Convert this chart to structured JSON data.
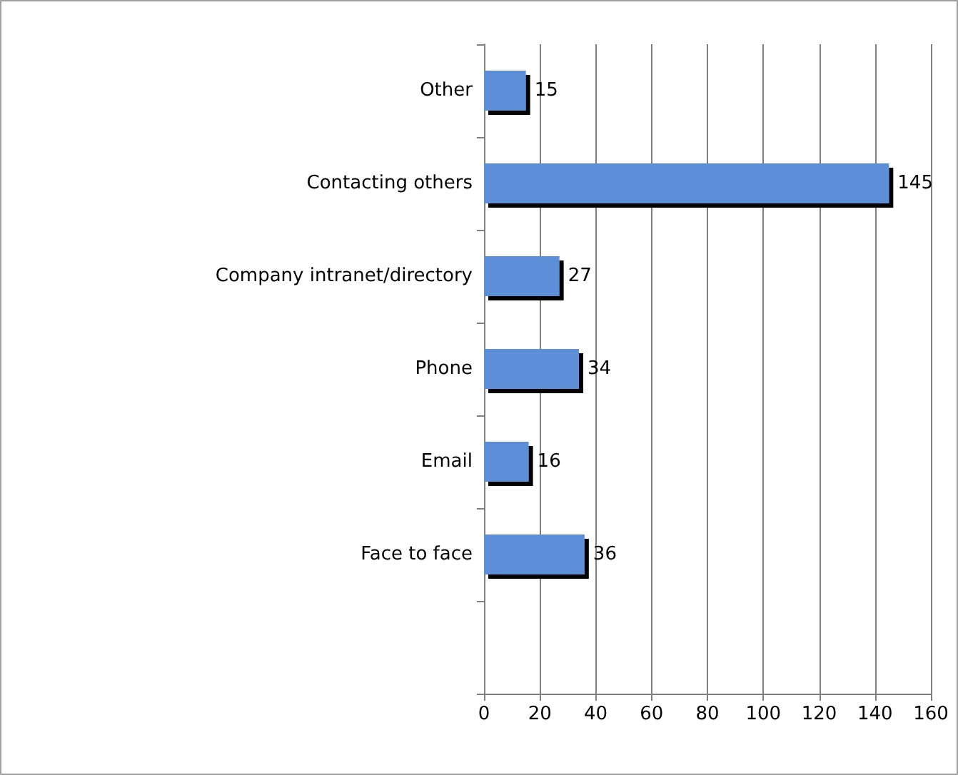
{
  "chart_data": {
    "type": "bar",
    "orientation": "horizontal",
    "categories": [
      "Other",
      "Contacting others",
      "Company intranet/directory",
      "Phone",
      "Email",
      "Face to face",
      null
    ],
    "values": [
      15,
      145,
      27,
      34,
      16,
      36,
      null
    ],
    "color": "#5b8fd8",
    "xlim": [
      0,
      160
    ],
    "xticks": [
      0,
      20,
      40,
      60,
      80,
      100,
      120,
      140,
      160
    ],
    "grid": "x",
    "data_labels": true
  }
}
